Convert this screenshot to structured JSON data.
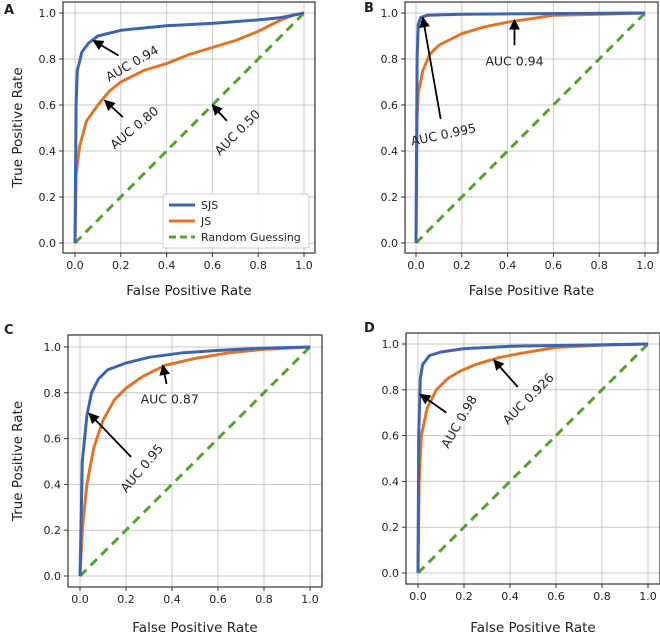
{
  "colors": {
    "sjs": "#4063ad",
    "js": "#e07428",
    "random": "#58a035",
    "grid": "#c8c8c8",
    "arrow": "#000000"
  },
  "chart_data": [
    {
      "type": "line",
      "panel_label": "A",
      "xlabel": "False Positive Rate",
      "ylabel": "True Positive Rate",
      "xlim": [
        0,
        1
      ],
      "ylim": [
        0,
        1
      ],
      "grid": true,
      "xticks": [
        "0.0",
        "0.2",
        "0.4",
        "0.6",
        "0.8",
        "1.0"
      ],
      "yticks": [
        "0.0",
        "0.2",
        "0.4",
        "0.6",
        "0.8",
        "1.0"
      ],
      "legend": {
        "placement": "lower-right",
        "entries": [
          "SJS",
          "JS",
          "Random Guessing"
        ]
      },
      "series": [
        {
          "name": "SJS",
          "key": "sjs",
          "points": [
            [
              0,
              0
            ],
            [
              0.005,
              0.6
            ],
            [
              0.01,
              0.75
            ],
            [
              0.03,
              0.83
            ],
            [
              0.06,
              0.87
            ],
            [
              0.1,
              0.9
            ],
            [
              0.2,
              0.925
            ],
            [
              0.4,
              0.945
            ],
            [
              0.6,
              0.955
            ],
            [
              0.8,
              0.97
            ],
            [
              0.9,
              0.98
            ],
            [
              1,
              1
            ]
          ]
        },
        {
          "name": "JS",
          "key": "js",
          "points": [
            [
              0,
              0
            ],
            [
              0.005,
              0.3
            ],
            [
              0.02,
              0.42
            ],
            [
              0.05,
              0.53
            ],
            [
              0.1,
              0.6
            ],
            [
              0.15,
              0.66
            ],
            [
              0.2,
              0.7
            ],
            [
              0.3,
              0.75
            ],
            [
              0.4,
              0.78
            ],
            [
              0.5,
              0.82
            ],
            [
              0.6,
              0.85
            ],
            [
              0.7,
              0.88
            ],
            [
              0.8,
              0.92
            ],
            [
              0.9,
              0.97
            ],
            [
              0.95,
              0.99
            ],
            [
              1,
              1
            ]
          ]
        },
        {
          "name": "Random Guessing",
          "key": "random",
          "points": [
            [
              0,
              0
            ],
            [
              1,
              1
            ]
          ]
        }
      ],
      "annotations": [
        {
          "text": "AUC 0.94",
          "xy": [
            0.08,
            0.88
          ],
          "xytext": [
            0.25,
            0.78
          ]
        },
        {
          "text": "AUC 0.80",
          "xy": [
            0.13,
            0.62
          ],
          "xytext": [
            0.26,
            0.5
          ]
        },
        {
          "text": "AUC 0.50",
          "xy": [
            0.6,
            0.6
          ],
          "xytext": [
            0.71,
            0.48
          ]
        }
      ]
    },
    {
      "type": "line",
      "panel_label": "B",
      "xlabel": "False Positive Rate",
      "ylabel": "",
      "xlim": [
        0,
        1
      ],
      "ylim": [
        0,
        1
      ],
      "grid": true,
      "xticks": [
        "0.0",
        "0.2",
        "0.4",
        "0.6",
        "0.8",
        "1.0"
      ],
      "yticks": [
        "0.0",
        "0.2",
        "0.4",
        "0.6",
        "0.8",
        "1.0"
      ],
      "series": [
        {
          "name": "SJS",
          "key": "sjs",
          "points": [
            [
              0,
              0
            ],
            [
              0.005,
              0.8
            ],
            [
              0.01,
              0.95
            ],
            [
              0.02,
              0.98
            ],
            [
              0.05,
              0.99
            ],
            [
              0.2,
              0.995
            ],
            [
              1,
              1
            ]
          ]
        },
        {
          "name": "JS",
          "key": "js",
          "points": [
            [
              0,
              0
            ],
            [
              0.005,
              0.55
            ],
            [
              0.01,
              0.65
            ],
            [
              0.03,
              0.75
            ],
            [
              0.06,
              0.82
            ],
            [
              0.1,
              0.86
            ],
            [
              0.2,
              0.91
            ],
            [
              0.3,
              0.94
            ],
            [
              0.4,
              0.96
            ],
            [
              0.5,
              0.975
            ],
            [
              0.6,
              0.99
            ],
            [
              0.8,
              0.995
            ],
            [
              1,
              1
            ]
          ]
        },
        {
          "name": "Random Guessing",
          "key": "random",
          "points": [
            [
              0,
              0
            ],
            [
              1,
              1
            ]
          ]
        }
      ],
      "annotations": [
        {
          "text": "AUC 0.995",
          "xy": [
            0.03,
            0.98
          ],
          "xytext": [
            0.12,
            0.47
          ]
        },
        {
          "text": "AUC 0.94",
          "xy": [
            0.43,
            0.97
          ],
          "xytext": [
            0.43,
            0.79
          ]
        }
      ]
    },
    {
      "type": "line",
      "panel_label": "C",
      "xlabel": "False Positive Rate",
      "ylabel": "True Positive Rate",
      "xlim": [
        0,
        1
      ],
      "ylim": [
        0,
        1
      ],
      "grid": true,
      "xticks": [
        "0.0",
        "0.2",
        "0.4",
        "0.6",
        "0.8",
        "1.0"
      ],
      "yticks": [
        "0.0",
        "0.2",
        "0.4",
        "0.6",
        "0.8",
        "1.0"
      ],
      "series": [
        {
          "name": "SJS",
          "key": "sjs",
          "points": [
            [
              0,
              0
            ],
            [
              0.01,
              0.5
            ],
            [
              0.03,
              0.7
            ],
            [
              0.05,
              0.8
            ],
            [
              0.08,
              0.86
            ],
            [
              0.12,
              0.9
            ],
            [
              0.2,
              0.93
            ],
            [
              0.3,
              0.955
            ],
            [
              0.45,
              0.975
            ],
            [
              0.6,
              0.985
            ],
            [
              0.8,
              0.995
            ],
            [
              1,
              1
            ]
          ]
        },
        {
          "name": "JS",
          "key": "js",
          "points": [
            [
              0,
              0
            ],
            [
              0.01,
              0.2
            ],
            [
              0.03,
              0.4
            ],
            [
              0.06,
              0.56
            ],
            [
              0.1,
              0.68
            ],
            [
              0.15,
              0.77
            ],
            [
              0.2,
              0.82
            ],
            [
              0.27,
              0.87
            ],
            [
              0.37,
              0.92
            ],
            [
              0.5,
              0.95
            ],
            [
              0.65,
              0.975
            ],
            [
              0.8,
              0.99
            ],
            [
              1,
              1
            ]
          ]
        },
        {
          "name": "Random Guessing",
          "key": "random",
          "points": [
            [
              0,
              0
            ],
            [
              1,
              1
            ]
          ]
        }
      ],
      "annotations": [
        {
          "text": "AUC 0.87",
          "xy": [
            0.36,
            0.92
          ],
          "xytext": [
            0.39,
            0.77
          ]
        },
        {
          "text": "AUC 0.95",
          "xy": [
            0.04,
            0.71
          ],
          "xytext": [
            0.27,
            0.47
          ]
        }
      ]
    },
    {
      "type": "line",
      "panel_label": "D",
      "xlabel": "False Positive Rate",
      "ylabel": "",
      "xlim": [
        0,
        1
      ],
      "ylim": [
        0,
        1
      ],
      "grid": true,
      "xticks": [
        "0.0",
        "0.2",
        "0.4",
        "0.6",
        "0.8",
        "1.0"
      ],
      "yticks": [
        "0.0",
        "0.2",
        "0.4",
        "0.6",
        "0.8",
        "1.0"
      ],
      "series": [
        {
          "name": "SJS",
          "key": "sjs",
          "points": [
            [
              0,
              0
            ],
            [
              0.003,
              0.6
            ],
            [
              0.01,
              0.85
            ],
            [
              0.02,
              0.91
            ],
            [
              0.05,
              0.95
            ],
            [
              0.1,
              0.965
            ],
            [
              0.2,
              0.98
            ],
            [
              0.4,
              0.99
            ],
            [
              1,
              1
            ]
          ]
        },
        {
          "name": "JS",
          "key": "js",
          "points": [
            [
              0,
              0
            ],
            [
              0.005,
              0.4
            ],
            [
              0.015,
              0.6
            ],
            [
              0.04,
              0.72
            ],
            [
              0.08,
              0.8
            ],
            [
              0.13,
              0.85
            ],
            [
              0.18,
              0.88
            ],
            [
              0.25,
              0.91
            ],
            [
              0.35,
              0.94
            ],
            [
              0.45,
              0.96
            ],
            [
              0.6,
              0.985
            ],
            [
              0.8,
              0.995
            ],
            [
              1,
              1
            ]
          ]
        },
        {
          "name": "Random Guessing",
          "key": "random",
          "points": [
            [
              0,
              0
            ],
            [
              1,
              1
            ]
          ]
        }
      ],
      "annotations": [
        {
          "text": "AUC 0.98",
          "xy": [
            0.01,
            0.78
          ],
          "xytext": [
            0.18,
            0.66
          ]
        },
        {
          "text": "AUC 0.926",
          "xy": [
            0.33,
            0.93
          ],
          "xytext": [
            0.48,
            0.76
          ]
        }
      ]
    }
  ]
}
